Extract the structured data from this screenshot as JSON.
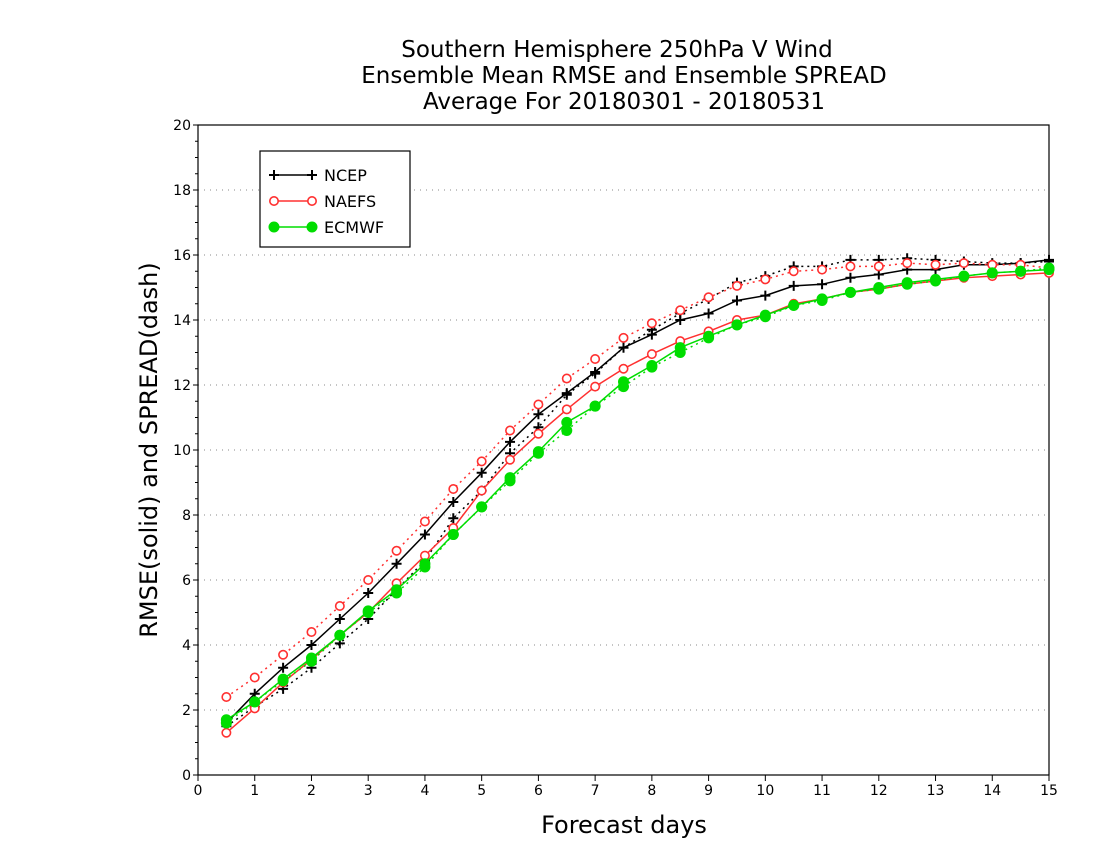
{
  "chart_data": {
    "type": "line",
    "title_lines": [
      "Southern Hemisphere 250hPa V Wind",
      "Ensemble Mean RMSE and Ensemble SPREAD",
      "Average For 20180301 - 20180531"
    ],
    "xlabel": "Forecast days",
    "ylabel": "RMSE(solid) and SPREAD(dash)",
    "xlim": [
      0,
      15
    ],
    "ylim": [
      0,
      20
    ],
    "xticks": [
      "0",
      "1",
      "2",
      "3",
      "4",
      "5",
      "6",
      "7",
      "8",
      "9",
      "10",
      "11",
      "12",
      "13",
      "14",
      "15"
    ],
    "yticks": [
      "0",
      "2",
      "4",
      "6",
      "8",
      "10",
      "12",
      "14",
      "16",
      "18",
      "20"
    ],
    "grid": "horizontal dotted",
    "legend_position": "top-left",
    "x": [
      0.5,
      1,
      1.5,
      2,
      2.5,
      3,
      3.5,
      4,
      4.5,
      5,
      5.5,
      6,
      6.5,
      7,
      7.5,
      8,
      8.5,
      9,
      9.5,
      10,
      10.5,
      11,
      11.5,
      12,
      12.5,
      13,
      13.5,
      14,
      14.5,
      15
    ],
    "series": [
      {
        "name": "NCEP",
        "color": "#000000",
        "marker": "plus",
        "rmse": [
          1.6,
          2.5,
          3.3,
          4.0,
          4.8,
          5.6,
          6.5,
          7.4,
          8.4,
          9.3,
          10.25,
          11.1,
          11.75,
          12.4,
          13.15,
          13.55,
          14.0,
          14.2,
          14.6,
          14.75,
          15.05,
          15.1,
          15.3,
          15.4,
          15.55,
          15.55,
          15.7,
          15.7,
          15.75,
          15.85
        ],
        "spread": [
          1.5,
          2.1,
          2.65,
          3.3,
          4.05,
          4.8,
          5.7,
          6.6,
          7.9,
          8.75,
          9.9,
          10.7,
          11.7,
          12.35,
          13.15,
          13.7,
          14.2,
          14.65,
          15.15,
          15.35,
          15.65,
          15.65,
          15.85,
          15.85,
          15.9,
          15.85,
          15.8,
          15.75,
          15.75,
          15.8
        ]
      },
      {
        "name": "NAEFS",
        "color": "#ff3030",
        "marker": "circle",
        "rmse": [
          1.3,
          2.05,
          2.85,
          3.55,
          4.3,
          5.0,
          5.9,
          6.75,
          7.6,
          8.75,
          9.7,
          10.5,
          11.25,
          11.95,
          12.5,
          12.95,
          13.35,
          13.65,
          14.0,
          14.15,
          14.5,
          14.65,
          14.85,
          14.95,
          15.1,
          15.2,
          15.3,
          15.35,
          15.4,
          15.45
        ],
        "spread": [
          2.4,
          3.0,
          3.7,
          4.4,
          5.2,
          6.0,
          6.9,
          7.8,
          8.8,
          9.65,
          10.6,
          11.4,
          12.2,
          12.8,
          13.45,
          13.9,
          14.3,
          14.7,
          15.05,
          15.25,
          15.5,
          15.55,
          15.65,
          15.65,
          15.75,
          15.7,
          15.75,
          15.7,
          15.7,
          15.6
        ]
      },
      {
        "name": "ECMWF",
        "color": "#00dd00",
        "marker": "filled-circle",
        "rmse": [
          1.7,
          2.25,
          2.95,
          3.6,
          4.3,
          5.05,
          5.7,
          6.5,
          7.4,
          8.25,
          9.15,
          9.95,
          10.85,
          11.35,
          12.1,
          12.6,
          13.15,
          13.5,
          13.85,
          14.15,
          14.45,
          14.65,
          14.85,
          15.0,
          15.15,
          15.25,
          15.35,
          15.45,
          15.5,
          15.55
        ],
        "spread": [
          1.6,
          2.25,
          2.9,
          3.5,
          4.3,
          5.0,
          5.6,
          6.4,
          7.4,
          8.25,
          9.05,
          9.9,
          10.6,
          11.35,
          11.95,
          12.55,
          13.0,
          13.45,
          13.85,
          14.1,
          14.45,
          14.6,
          14.85,
          14.95,
          15.1,
          15.2,
          15.35,
          15.45,
          15.5,
          15.6
        ]
      }
    ]
  }
}
